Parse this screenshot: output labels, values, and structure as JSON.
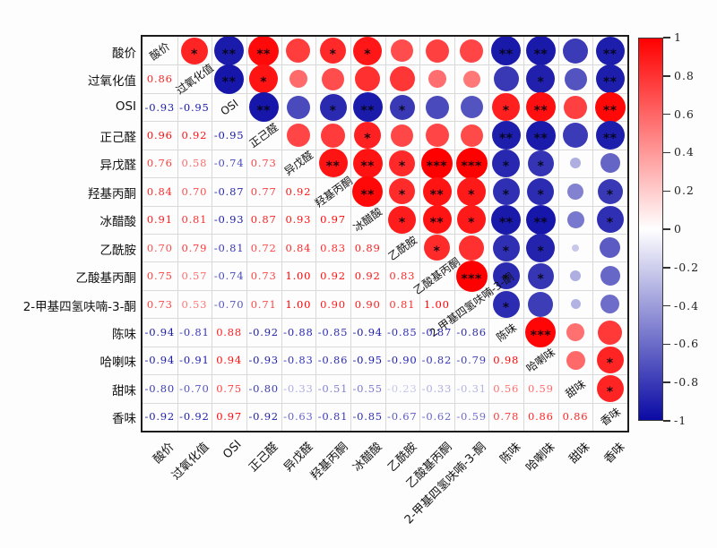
{
  "chart_data": {
    "type": "heatmap",
    "subtype": "correlation-matrix",
    "title": "",
    "variables": [
      "酸价",
      "过氧化值",
      "OSI",
      "正己醛",
      "异戊醛",
      "羟基丙酮",
      "冰醋酸",
      "乙酰胺",
      "乙酸基丙酮",
      "2-甲基四氢呋喃-3-酮",
      "陈味",
      "哈喇味",
      "甜味",
      "香味"
    ],
    "lower_triangle_correlations": [
      [
        0.86
      ],
      [
        -0.93,
        -0.95
      ],
      [
        0.96,
        0.92,
        -0.95
      ],
      [
        0.76,
        0.58,
        -0.74,
        0.73
      ],
      [
        0.84,
        0.7,
        -0.87,
        0.77,
        0.92
      ],
      [
        0.91,
        0.81,
        -0.93,
        0.87,
        0.93,
        0.97
      ],
      [
        0.7,
        0.79,
        -0.81,
        0.72,
        0.84,
        0.83,
        0.89
      ],
      [
        0.75,
        0.57,
        -0.74,
        0.73,
        1.0,
        0.92,
        0.92,
        0.83
      ],
      [
        0.73,
        0.53,
        -0.7,
        0.71,
        1.0,
        0.9,
        0.9,
        0.81,
        1.0
      ],
      [
        -0.94,
        -0.81,
        0.88,
        -0.92,
        -0.88,
        -0.85,
        -0.94,
        -0.85,
        -0.87,
        -0.86
      ],
      [
        -0.94,
        -0.91,
        0.94,
        -0.93,
        -0.83,
        -0.86,
        -0.95,
        -0.9,
        -0.82,
        -0.79,
        0.98
      ],
      [
        -0.8,
        -0.7,
        0.75,
        -0.8,
        -0.33,
        -0.51,
        -0.55,
        -0.23,
        -0.33,
        -0.31,
        0.56,
        0.59
      ],
      [
        -0.92,
        -0.92,
        0.97,
        -0.92,
        -0.63,
        -0.81,
        -0.85,
        -0.67,
        -0.62,
        -0.59,
        0.78,
        0.86,
        0.86
      ]
    ],
    "upper_triangle_significance": [
      [
        "*",
        "**",
        "**",
        "",
        "*",
        "*",
        "",
        "",
        "",
        "**",
        "**",
        "",
        "**"
      ],
      [
        "**",
        "*",
        "",
        "",
        "",
        "",
        "",
        "",
        "",
        "*",
        "",
        "**"
      ],
      [
        "**",
        "",
        "*",
        "**",
        "*",
        "",
        "",
        "*",
        "**",
        "",
        "**"
      ],
      [
        "",
        "",
        "*",
        "",
        "",
        "",
        "**",
        "**",
        "",
        "**"
      ],
      [
        "**",
        "**",
        "*",
        "***",
        "***",
        "*",
        "*",
        "",
        ""
      ],
      [
        "**",
        "*",
        "**",
        "*",
        "*",
        "*",
        "",
        "*"
      ],
      [
        "*",
        "**",
        "*",
        "**",
        "**",
        "",
        "*"
      ],
      [
        "*",
        "",
        "*",
        "*",
        "",
        ""
      ],
      [
        "***",
        "*",
        "*",
        "",
        ""
      ],
      [
        "*",
        "",
        "",
        ""
      ],
      [
        "***",
        "",
        ""
      ],
      [
        "",
        "*"
      ],
      [
        "*"
      ]
    ],
    "colorbar": {
      "tick_labels": [
        "1",
        "0.8",
        "0.6",
        "0.4",
        "0.2",
        "0",
        "-0.2",
        "-0.4",
        "-0.6",
        "-0.8",
        "-1"
      ],
      "max": 1,
      "min": -1
    },
    "colors": {
      "positive_max": "#ff0000",
      "negative_max": "#0a0aa5",
      "zero": "#ffffff",
      "star": "#05050f",
      "grid": "#d9d9d9",
      "frame": "#1c1c1c"
    },
    "legend_position": "right",
    "grid": true
  }
}
